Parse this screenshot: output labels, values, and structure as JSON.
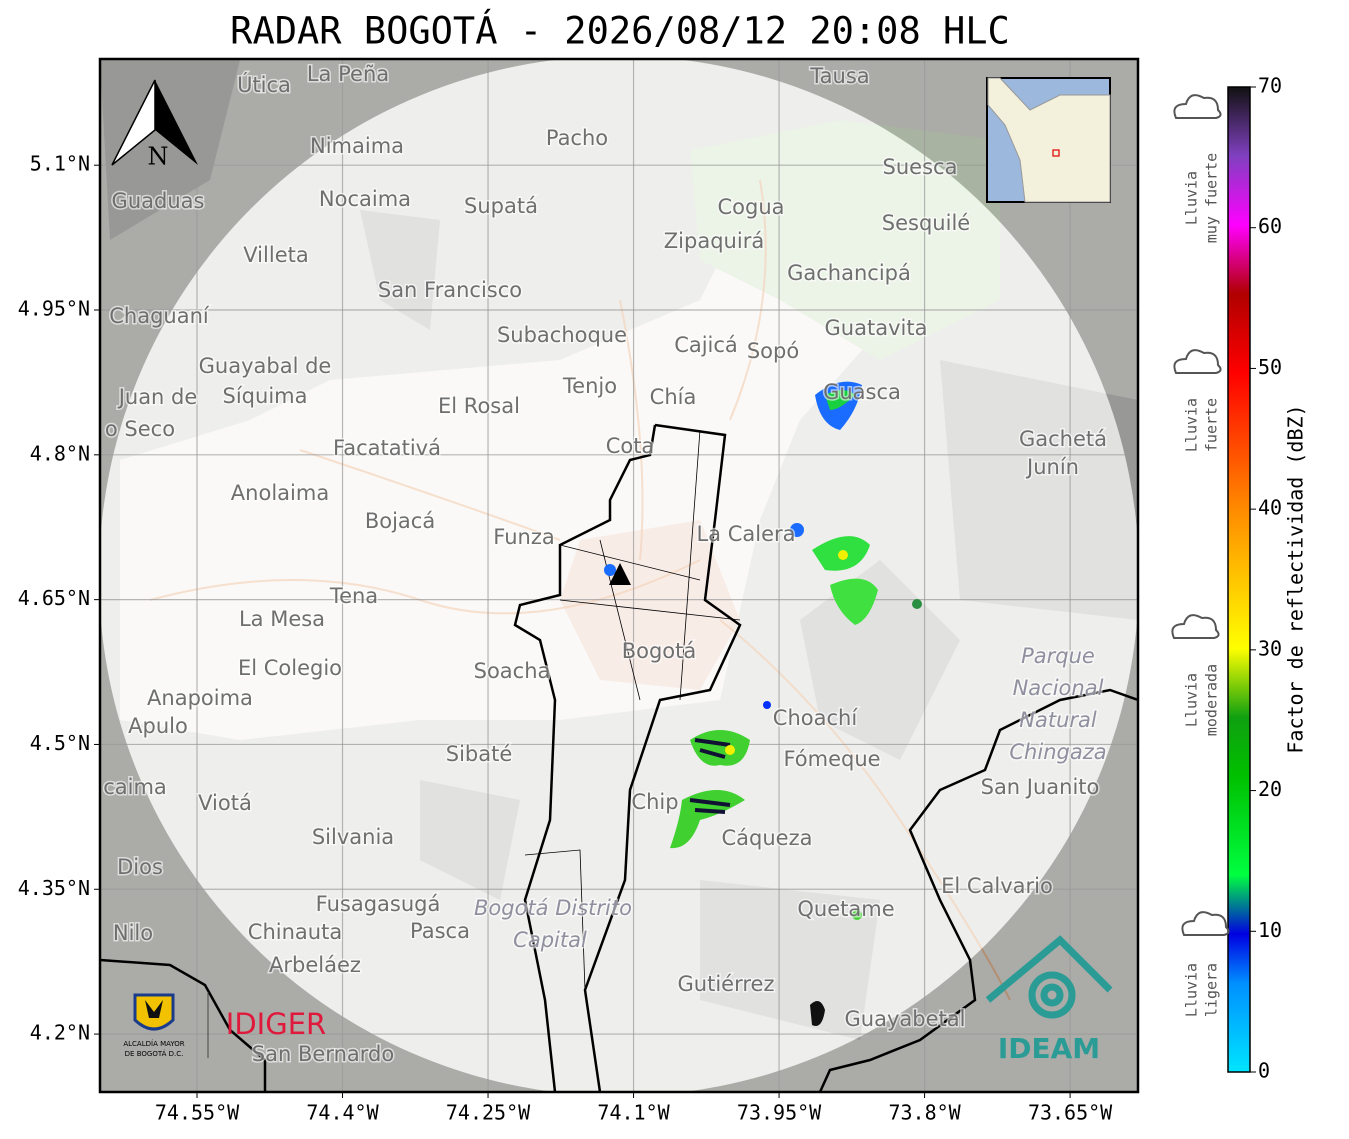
{
  "title": "RADAR BOGOTÁ - 2026/08/12 20:08 HLC",
  "map": {
    "xlim": [
      -74.65,
      -73.58
    ],
    "ylim": [
      4.14,
      5.21
    ],
    "xticks": [
      {
        "value": -74.55,
        "label": "74.55°W"
      },
      {
        "value": -74.4,
        "label": "74.4°W"
      },
      {
        "value": -74.25,
        "label": "74.25°W"
      },
      {
        "value": -74.1,
        "label": "74.1°W"
      },
      {
        "value": -73.95,
        "label": "73.95°W"
      },
      {
        "value": -73.8,
        "label": "73.8°W"
      },
      {
        "value": -73.65,
        "label": "73.65°W"
      }
    ],
    "yticks": [
      {
        "value": 5.1,
        "label": "5.1°N"
      },
      {
        "value": 4.95,
        "label": "4.95°N"
      },
      {
        "value": 4.8,
        "label": "4.8°N"
      },
      {
        "value": 4.65,
        "label": "4.65°N"
      },
      {
        "value": 4.5,
        "label": "4.5°N"
      },
      {
        "value": 4.35,
        "label": "4.35°N"
      },
      {
        "value": 4.2,
        "label": "4.2°N"
      }
    ],
    "grid": true,
    "north": "N",
    "places": [
      "La Peña",
      "Útica",
      "Tausa",
      "Pacho",
      "Nimaima",
      "Suesca",
      "Guaduas",
      "Nocaima",
      "Supatá",
      "Cogua",
      "Zipaquirá",
      "Sesquilé",
      "Villeta",
      "Gachancipá",
      "San Francisco",
      "Chaguaní",
      "Guatavita",
      "Subachoque",
      "Cajicá",
      "Sopó",
      "Guayabal de",
      "Síquima",
      "Tenjo",
      "Chía",
      "Guasca",
      "El Rosal",
      "Juan de",
      "o Seco",
      "Facatativá",
      "Cota",
      "Gachetá",
      "Junín",
      "Anolaima",
      "Bojacá",
      "La Calera",
      "Funza",
      "Tena",
      "La Mesa",
      "Bogotá",
      "Soacha",
      "El Colegio",
      "Anapoima",
      "Apulo",
      "Choachí",
      "Fómeque",
      "Sibaté",
      "San Juanito",
      "caima",
      "Viotá",
      "Chip",
      "Silvania",
      "Cáqueza",
      "Dios",
      "El Calvario",
      "Quetame",
      "Fusagasugá",
      "Nilo",
      "Chinauta",
      "Pasca",
      "Arbeláez",
      "Gutiérrez",
      "Guayabetal",
      "San Bernardo"
    ],
    "italic_places": [
      "Parque",
      "Nacional",
      "Natural",
      "Chingaza",
      "Bogotá Distrito",
      "Capital"
    ]
  },
  "logos": {
    "alcaldia": [
      "ALCALDÍA MAYOR",
      "DE BOGOTÁ D.C."
    ],
    "idiger": "IDIGER",
    "ideam": "IDEAM"
  },
  "colorbar": {
    "label": "Factor de reflectividad (dBZ)",
    "lim": [
      0,
      70
    ],
    "ticks": [
      0,
      10,
      20,
      30,
      40,
      50,
      60,
      70
    ]
  },
  "legend": [
    [
      "Lluvia",
      "muy fuerte"
    ],
    [
      "Lluvia",
      "fuerte"
    ],
    [
      "Lluvia",
      "moderada"
    ],
    [
      "Lluvia",
      "ligera"
    ]
  ]
}
